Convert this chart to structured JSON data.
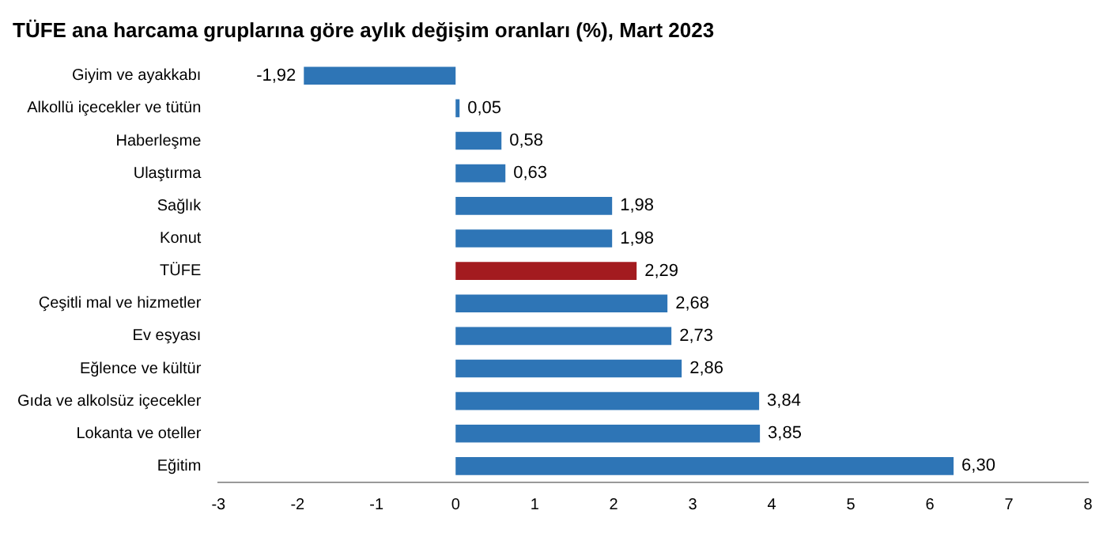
{
  "chart_data": {
    "type": "bar",
    "orientation": "horizontal",
    "title": "TÜFE ana harcama gruplarına göre aylık değişim oranları (%), Mart 2023",
    "categories": [
      "Giyim ve ayakkabı",
      "Alkollü içecekler ve tütün",
      "Haberleşme",
      "Ulaştırma",
      "Sağlık",
      "Konut",
      "TÜFE",
      "Çeşitli mal ve hizmetler",
      "Ev eşyası",
      "Eğlence ve kültür",
      "Gıda ve alkolsüz içecekler",
      "Lokanta ve oteller",
      "Eğitim"
    ],
    "values": [
      -1.92,
      0.05,
      0.58,
      0.63,
      1.98,
      1.98,
      2.29,
      2.68,
      2.73,
      2.86,
      3.84,
      3.85,
      6.3
    ],
    "value_labels": [
      "-1,92",
      "0,05",
      "0,58",
      "0,63",
      "1,98",
      "1,98",
      "2,29",
      "2,68",
      "2,73",
      "2,86",
      "3,84",
      "3,85",
      "6,30"
    ],
    "colors": [
      "#2e75b6",
      "#2e75b6",
      "#2e75b6",
      "#2e75b6",
      "#2e75b6",
      "#2e75b6",
      "#a31b1f",
      "#2e75b6",
      "#2e75b6",
      "#2e75b6",
      "#2e75b6",
      "#2e75b6",
      "#2e75b6"
    ],
    "xlim": [
      -3,
      8
    ],
    "xticks": [
      -3,
      -2,
      -1,
      0,
      1,
      2,
      3,
      4,
      5,
      6,
      7,
      8
    ],
    "grid": false,
    "legend": false
  }
}
